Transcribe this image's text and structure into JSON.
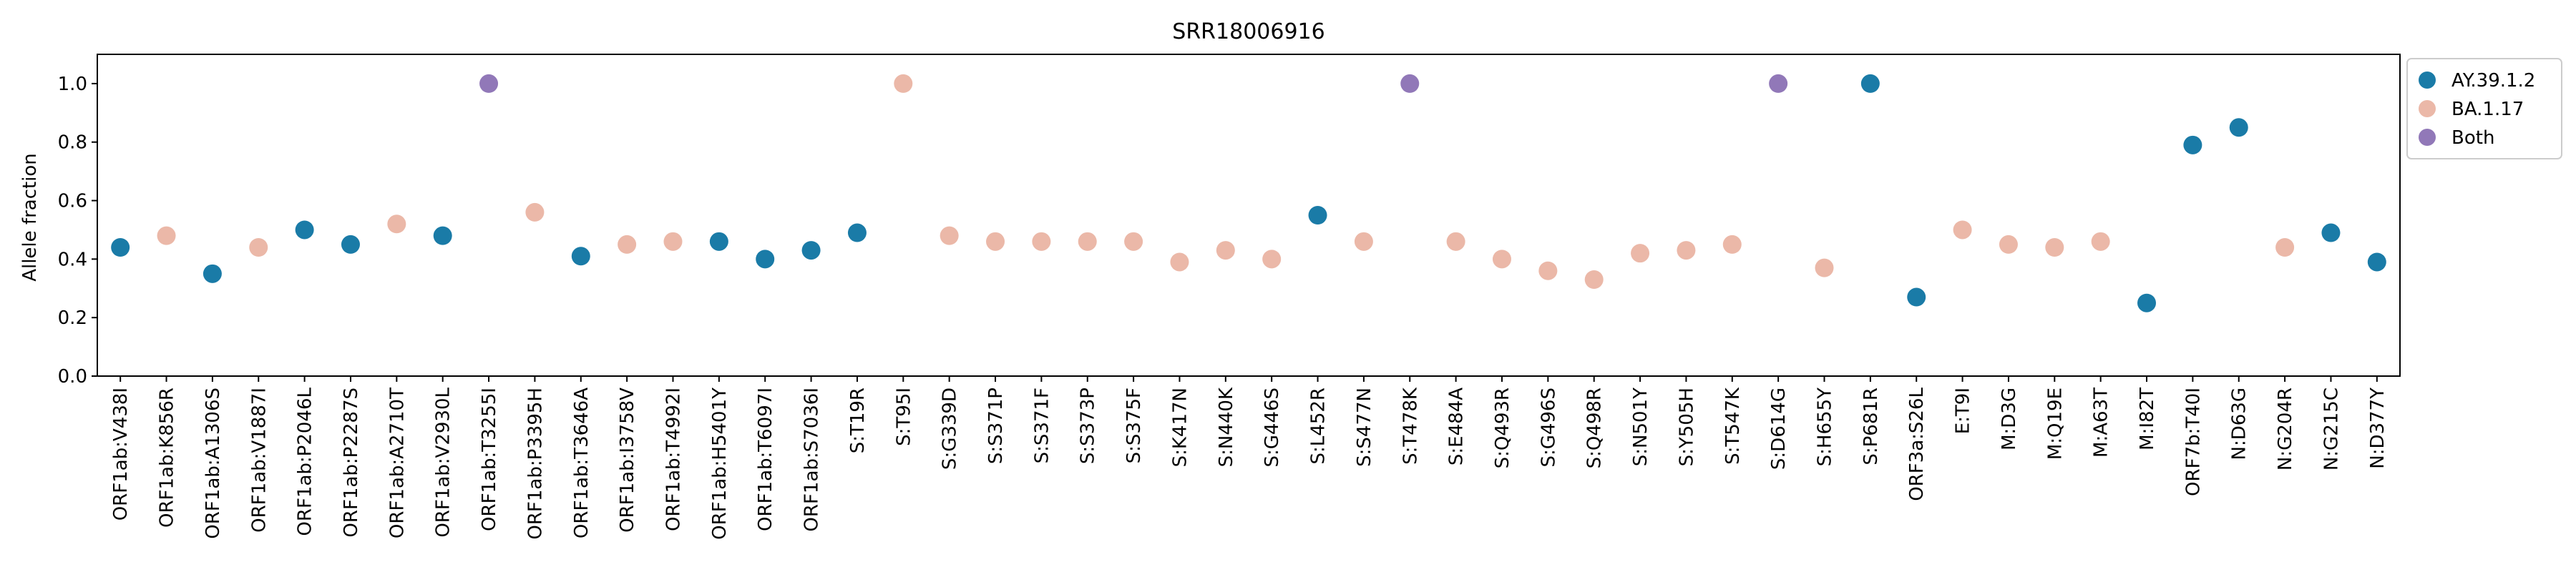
{
  "chart_data": {
    "type": "scatter",
    "title": "SRR18006916",
    "xlabel": "",
    "ylabel": "Allele fraction",
    "ylim": [
      0.0,
      1.1
    ],
    "yticks": [
      "0.0",
      "0.2",
      "0.4",
      "0.6",
      "0.8",
      "1.0"
    ],
    "grid": false,
    "legend_position": "outside-top-right",
    "legend": [
      {
        "name": "AY.39.1.2",
        "color": "#1a7ba7"
      },
      {
        "name": "BA.1.17",
        "color": "#ebb8a8"
      },
      {
        "name": "Both",
        "color": "#9178b8"
      }
    ],
    "categories": [
      "ORF1ab:V438I",
      "ORF1ab:K856R",
      "ORF1ab:A1306S",
      "ORF1ab:V1887I",
      "ORF1ab:P2046L",
      "ORF1ab:P2287S",
      "ORF1ab:A2710T",
      "ORF1ab:V2930L",
      "ORF1ab:T3255I",
      "ORF1ab:P3395H",
      "ORF1ab:T3646A",
      "ORF1ab:I3758V",
      "ORF1ab:T4992I",
      "ORF1ab:H5401Y",
      "ORF1ab:T6097I",
      "ORF1ab:S7036I",
      "S:T19R",
      "S:T95I",
      "S:G339D",
      "S:S371P",
      "S:S371F",
      "S:S373P",
      "S:S375F",
      "S:K417N",
      "S:N440K",
      "S:G446S",
      "S:L452R",
      "S:S477N",
      "S:T478K",
      "S:E484A",
      "S:Q493R",
      "S:G496S",
      "S:Q498R",
      "S:N501Y",
      "S:Y505H",
      "S:T547K",
      "S:D614G",
      "S:H655Y",
      "S:P681R",
      "ORF3a:S26L",
      "E:T9I",
      "M:D3G",
      "M:Q19E",
      "M:A63T",
      "M:I82T",
      "ORF7b:T40I",
      "N:D63G",
      "N:G204R",
      "N:G215C",
      "N:D377Y"
    ],
    "values": [
      0.44,
      0.48,
      0.35,
      0.44,
      0.5,
      0.45,
      0.52,
      0.48,
      1.0,
      0.56,
      0.41,
      0.45,
      0.46,
      0.46,
      0.4,
      0.43,
      0.49,
      1.0,
      0.48,
      0.46,
      0.46,
      0.46,
      0.46,
      0.39,
      0.43,
      0.4,
      0.55,
      0.46,
      1.0,
      0.46,
      0.4,
      0.36,
      0.33,
      0.42,
      0.43,
      0.45,
      1.0,
      0.37,
      1.0,
      0.27,
      0.5,
      0.45,
      0.44,
      0.46,
      0.25,
      0.79,
      0.85,
      0.44,
      0.49,
      0.39
    ],
    "groups": [
      "AY.39.1.2",
      "BA.1.17",
      "AY.39.1.2",
      "BA.1.17",
      "AY.39.1.2",
      "AY.39.1.2",
      "BA.1.17",
      "AY.39.1.2",
      "Both",
      "BA.1.17",
      "AY.39.1.2",
      "BA.1.17",
      "BA.1.17",
      "AY.39.1.2",
      "AY.39.1.2",
      "AY.39.1.2",
      "AY.39.1.2",
      "BA.1.17",
      "BA.1.17",
      "BA.1.17",
      "BA.1.17",
      "BA.1.17",
      "BA.1.17",
      "BA.1.17",
      "BA.1.17",
      "BA.1.17",
      "AY.39.1.2",
      "BA.1.17",
      "Both",
      "BA.1.17",
      "BA.1.17",
      "BA.1.17",
      "BA.1.17",
      "BA.1.17",
      "BA.1.17",
      "BA.1.17",
      "Both",
      "BA.1.17",
      "AY.39.1.2",
      "AY.39.1.2",
      "BA.1.17",
      "BA.1.17",
      "BA.1.17",
      "BA.1.17",
      "AY.39.1.2",
      "AY.39.1.2",
      "AY.39.1.2",
      "BA.1.17",
      "AY.39.1.2",
      "AY.39.1.2"
    ]
  }
}
